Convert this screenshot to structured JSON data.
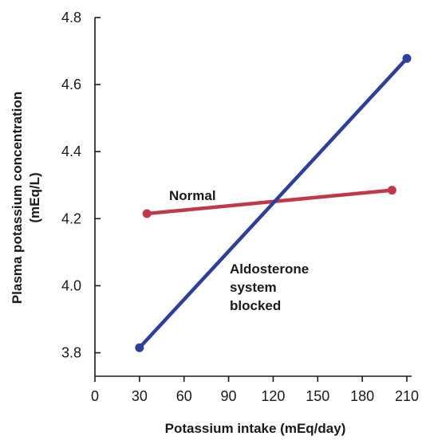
{
  "chart_data": {
    "type": "line",
    "xlabel": "Potassium intake (mEq/day)",
    "ylabel_lines": [
      "Plasma potassium concentration",
      "(mEq/L)"
    ],
    "xlim": [
      0,
      210
    ],
    "ylim": [
      3.73,
      4.8
    ],
    "x_ticks": [
      0,
      30,
      60,
      90,
      120,
      150,
      180,
      210
    ],
    "x_tick_labels": [
      "0",
      "30",
      "60",
      "90",
      "120",
      "150",
      "180",
      "210"
    ],
    "y_ticks": [
      3.8,
      4.0,
      4.2,
      4.4,
      4.6,
      4.8
    ],
    "y_tick_labels": [
      "3.8",
      "4.0",
      "4.2",
      "4.4",
      "4.6",
      "4.8"
    ],
    "grid": false,
    "legend": "none",
    "series": [
      {
        "name": "Normal",
        "label_lines": [
          "Normal"
        ],
        "color": "#c0394b",
        "points": [
          [
            35,
            4.215
          ],
          [
            200,
            4.285
          ]
        ]
      },
      {
        "name": "Aldosterone system blocked",
        "label_lines": [
          "Aldosterone",
          "system",
          "blocked"
        ],
        "color": "#2e3f99",
        "points": [
          [
            30,
            3.815
          ],
          [
            210,
            4.678
          ]
        ]
      }
    ]
  }
}
